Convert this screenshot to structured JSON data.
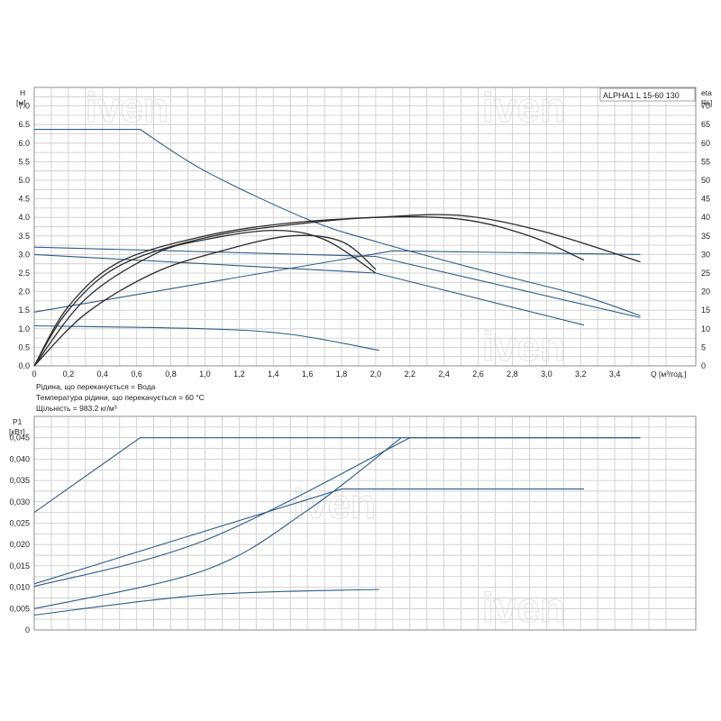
{
  "chart_data": [
    {
      "type": "line",
      "title": "ALPHA1 L 15-60 130",
      "xlabel": "Q [м³/год.]",
      "ylabel_left": [
        "H",
        "[м]"
      ],
      "ylabel_right": [
        "eta",
        "[%]"
      ],
      "xlim": [
        0,
        3.6
      ],
      "ylim_left": [
        0,
        7.5
      ],
      "ylim_right": [
        0,
        75
      ],
      "grid": true,
      "x_ticks": [
        "0",
        "0,2",
        "0,4",
        "0,6",
        "0,8",
        "1,0",
        "1,2",
        "1,4",
        "1,6",
        "1,8",
        "2,0",
        "2,2",
        "2,4",
        "2,6",
        "2,8",
        "3,0",
        "3,2",
        "3,4"
      ],
      "y_ticks_left": [
        "0.0",
        "0.5",
        "1.0",
        "1.5",
        "2.0",
        "2.5",
        "3.0",
        "3.5",
        "4.0",
        "4.5",
        "5.0",
        "5.5",
        "6.0",
        "6.5",
        "7.0"
      ],
      "y_ticks_right": [
        "0",
        "5",
        "10",
        "15",
        "20",
        "25",
        "30",
        "35",
        "40",
        "45",
        "50",
        "55",
        "60",
        "65",
        "70"
      ],
      "series": [
        {
          "axis": "left",
          "x": [
            0,
            0.62,
            1.0,
            1.6,
            2.0,
            2.6,
            3.2,
            3.55
          ],
          "y": [
            6.37,
            6.37,
            5.25,
            3.95,
            3.35,
            2.6,
            1.9,
            1.35
          ]
        },
        {
          "axis": "left",
          "x": [
            0,
            2.0,
            3.55
          ],
          "y": [
            3.2,
            2.95,
            1.3
          ]
        },
        {
          "axis": "left",
          "x": [
            0,
            2.0,
            3.22
          ],
          "y": [
            3.0,
            2.5,
            1.1
          ]
        },
        {
          "axis": "left",
          "x": [
            0,
            2.1,
            3.55
          ],
          "y": [
            1.45,
            3.1,
            3.0
          ]
        },
        {
          "axis": "left",
          "x": [
            0,
            1.0,
            1.5,
            2.02
          ],
          "y": [
            1.08,
            1.0,
            0.85,
            0.42
          ]
        },
        {
          "axis": "right",
          "x": [
            0,
            0.2,
            0.5,
            1.0,
            1.5,
            2.0,
            2.5,
            3.0,
            3.55
          ],
          "y": [
            0,
            16,
            28,
            35,
            38.5,
            40,
            40.5,
            36,
            28
          ]
        },
        {
          "axis": "right",
          "x": [
            0,
            0.2,
            0.5,
            1.0,
            1.5,
            2.0,
            2.5,
            2.9,
            3.22
          ],
          "y": [
            0,
            15,
            27,
            34.5,
            38,
            40,
            39.5,
            35,
            28.5
          ]
        },
        {
          "axis": "right",
          "x": [
            0,
            0.3,
            0.7,
            1.0,
            1.4,
            1.7,
            2.0
          ],
          "y": [
            0,
            18,
            30,
            34,
            36.5,
            34,
            25
          ]
        },
        {
          "axis": "right",
          "x": [
            0,
            0.3,
            0.7,
            1.1,
            1.5,
            1.8,
            2.0
          ],
          "y": [
            0,
            14,
            25,
            31,
            35,
            33.5,
            26
          ]
        }
      ],
      "notes": [
        "Рідина, що перекачується = Вода",
        "Температура рідини, що перекачується = 60 °C",
        "Щільність = 983.2 кг/м³"
      ]
    },
    {
      "type": "line",
      "xlim": [
        0,
        3.6
      ],
      "ylim": [
        0,
        0.05
      ],
      "ylabel": [
        "P1",
        "[кВт]"
      ],
      "grid": true,
      "y_ticks": [
        "0",
        "0,005",
        "0,010",
        "0,015",
        "0,020",
        "0,025",
        "0,030",
        "0,035",
        "0,040",
        "0,045"
      ],
      "series": [
        {
          "x": [
            0,
            0.62,
            3.55
          ],
          "y": [
            0.0275,
            0.045,
            0.045
          ]
        },
        {
          "x": [
            0,
            1.8,
            3.22
          ],
          "y": [
            0.0108,
            0.033,
            0.033
          ]
        },
        {
          "x": [
            0,
            1.0,
            2.2
          ],
          "y": [
            0.0102,
            0.021,
            0.045
          ]
        },
        {
          "x": [
            0,
            1.0,
            1.6,
            2.15
          ],
          "y": [
            0.005,
            0.014,
            0.028,
            0.045
          ]
        },
        {
          "x": [
            0,
            1.0,
            2.02
          ],
          "y": [
            0.0035,
            0.0082,
            0.0095
          ]
        }
      ]
    }
  ],
  "watermark": "iven"
}
